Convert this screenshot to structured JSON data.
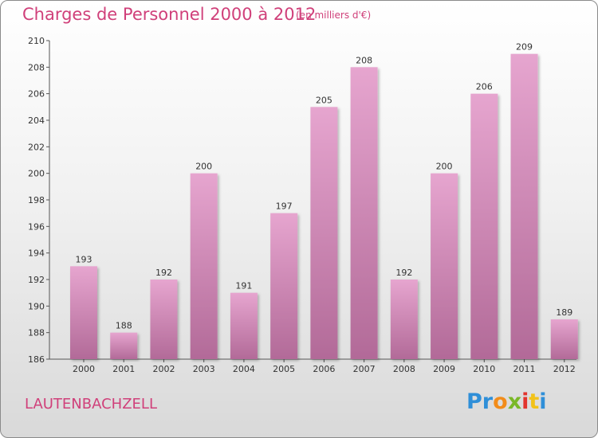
{
  "title": "Charges de Personnel 2000 à 2012",
  "subtitle": "(en milliers d'€)",
  "place": "LAUTENBACHZELL",
  "logo": {
    "letters": [
      {
        "ch": "P",
        "color": "#2f8fd8"
      },
      {
        "ch": "r",
        "color": "#2f8fd8"
      },
      {
        "ch": "o",
        "color": "#f28c1a"
      },
      {
        "ch": "x",
        "color": "#7ab827"
      },
      {
        "ch": "i",
        "color": "#e2342d"
      },
      {
        "ch": "t",
        "color": "#f2c21a"
      },
      {
        "ch": "i",
        "color": "#2f8fd8"
      }
    ]
  },
  "colors": {
    "bar_top": "#e6a5cf",
    "bar_bottom": "#b26a98",
    "text_accent": "#d0407a"
  },
  "chart_data": {
    "type": "bar",
    "categories": [
      "2000",
      "2001",
      "2002",
      "2003",
      "2004",
      "2005",
      "2006",
      "2007",
      "2008",
      "2009",
      "2010",
      "2011",
      "2012"
    ],
    "values": [
      193,
      188,
      192,
      200,
      191,
      197,
      205,
      208,
      192,
      200,
      206,
      209,
      189
    ],
    "ylim": [
      186,
      210
    ],
    "yticks": [
      186,
      188,
      190,
      192,
      194,
      196,
      198,
      200,
      202,
      204,
      206,
      208,
      210
    ],
    "grid": false,
    "legend": "none"
  }
}
